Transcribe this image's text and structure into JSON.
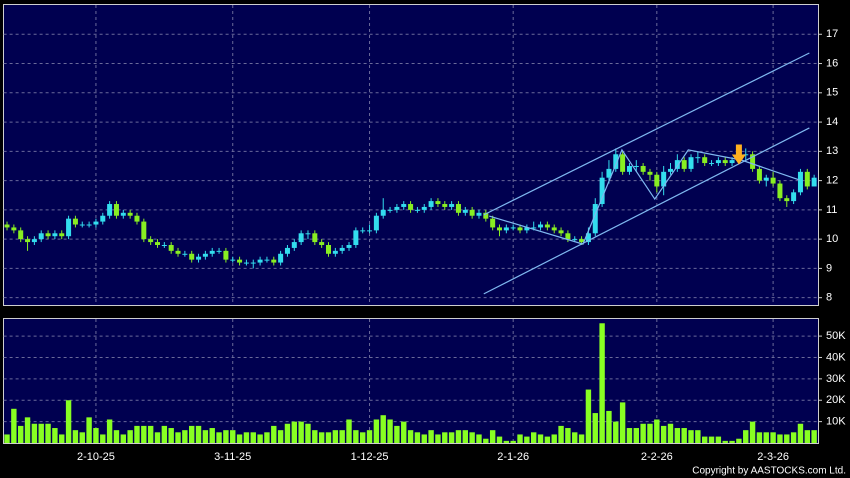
{
  "chart_data": [
    {
      "type": "candlestick",
      "up_color": "#33ddee",
      "down_color": "#88ee22",
      "grid": true,
      "ylim": [
        7.75,
        18.0
      ],
      "yticks": [
        8,
        9,
        10,
        11,
        12,
        13,
        14,
        15,
        16,
        17
      ],
      "open": [
        10.5,
        10.4,
        10.3,
        10.0,
        9.9,
        10.0,
        10.2,
        10.1,
        10.2,
        10.1,
        10.7,
        10.5,
        10.5,
        10.5,
        10.6,
        10.8,
        11.2,
        10.8,
        10.9,
        10.8,
        10.6,
        10.0,
        9.9,
        9.8,
        9.8,
        9.6,
        9.5,
        9.5,
        9.3,
        9.4,
        9.5,
        9.6,
        9.6,
        9.3,
        9.3,
        9.2,
        9.2,
        9.2,
        9.3,
        9.3,
        9.2,
        9.5,
        9.7,
        9.9,
        10.2,
        10.2,
        9.9,
        9.8,
        9.5,
        9.6,
        9.7,
        9.8,
        10.3,
        10.3,
        10.3,
        10.8,
        11.0,
        11.0,
        11.1,
        11.2,
        11.0,
        11.0,
        11.1,
        11.3,
        11.2,
        11.1,
        11.2,
        10.9,
        11.0,
        10.8,
        10.9,
        10.7,
        10.4,
        10.3,
        10.4,
        10.4,
        10.3,
        10.4,
        10.4,
        10.5,
        10.4,
        10.3,
        10.2,
        10.0,
        10.0,
        9.9,
        10.2,
        11.2,
        12.1,
        12.4,
        12.9,
        12.3,
        12.5,
        12.5,
        12.3,
        12.2,
        11.8,
        12.3,
        12.4,
        12.7,
        12.4,
        12.8,
        12.8,
        12.6,
        12.6,
        12.7,
        12.6,
        12.7,
        12.9,
        12.9,
        12.4,
        12.0,
        12.1,
        11.9,
        11.4,
        11.3,
        11.6,
        12.3,
        11.8
      ],
      "high": [
        10.6,
        10.5,
        10.4,
        10.1,
        10.1,
        10.3,
        10.3,
        10.3,
        10.3,
        10.8,
        10.8,
        10.6,
        10.6,
        10.7,
        10.9,
        11.3,
        11.3,
        11.0,
        11.0,
        10.9,
        10.7,
        10.1,
        10.0,
        9.9,
        9.9,
        9.7,
        9.6,
        9.6,
        9.5,
        9.6,
        9.7,
        9.7,
        9.7,
        9.4,
        9.4,
        9.3,
        9.3,
        9.4,
        9.4,
        9.4,
        9.6,
        9.8,
        10.0,
        10.3,
        10.3,
        10.3,
        10.0,
        9.9,
        9.7,
        9.8,
        9.9,
        10.4,
        10.4,
        10.5,
        10.9,
        11.4,
        11.1,
        11.2,
        11.3,
        11.3,
        11.1,
        11.2,
        11.4,
        11.4,
        11.3,
        11.3,
        11.3,
        11.1,
        11.1,
        11.0,
        11.0,
        10.8,
        10.5,
        10.5,
        10.5,
        10.5,
        10.5,
        10.6,
        10.6,
        10.6,
        10.5,
        10.4,
        10.3,
        10.1,
        10.1,
        10.4,
        11.4,
        12.3,
        12.7,
        13.1,
        13.0,
        12.6,
        12.7,
        12.6,
        12.4,
        12.3,
        12.5,
        12.6,
        12.9,
        12.8,
        12.9,
        13.0,
        12.9,
        12.7,
        12.8,
        12.8,
        12.8,
        13.0,
        13.1,
        13.0,
        12.5,
        12.2,
        12.3,
        12.0,
        11.5,
        11.7,
        12.4,
        12.4,
        12.2
      ],
      "low": [
        10.3,
        10.2,
        9.9,
        9.6,
        9.8,
        9.9,
        10.0,
        10.0,
        10.0,
        10.0,
        10.4,
        10.4,
        10.4,
        10.4,
        10.5,
        10.7,
        10.7,
        10.7,
        10.7,
        10.5,
        9.9,
        9.8,
        9.7,
        9.7,
        9.5,
        9.4,
        9.4,
        9.2,
        9.2,
        9.3,
        9.4,
        9.5,
        9.2,
        9.2,
        9.1,
        9.1,
        9.0,
        9.1,
        9.2,
        9.1,
        9.1,
        9.4,
        9.6,
        9.8,
        10.0,
        9.8,
        9.7,
        9.4,
        9.4,
        9.5,
        9.6,
        9.7,
        10.2,
        10.2,
        10.2,
        10.7,
        10.9,
        10.9,
        11.0,
        10.9,
        10.9,
        10.9,
        11.0,
        11.1,
        11.0,
        11.0,
        10.8,
        10.8,
        10.7,
        10.7,
        10.6,
        10.3,
        10.1,
        10.2,
        10.3,
        10.2,
        10.2,
        10.3,
        10.3,
        10.3,
        10.2,
        10.1,
        9.9,
        9.9,
        9.8,
        9.8,
        10.1,
        11.1,
        11.9,
        12.3,
        12.2,
        12.2,
        12.3,
        12.2,
        12.0,
        11.6,
        11.5,
        12.2,
        12.3,
        12.3,
        12.3,
        12.6,
        12.5,
        12.5,
        12.5,
        12.5,
        12.5,
        12.6,
        12.7,
        12.3,
        11.9,
        11.8,
        11.8,
        11.3,
        11.1,
        11.2,
        11.5,
        11.7,
        11.8
      ],
      "close": [
        10.4,
        10.3,
        10.0,
        9.9,
        10.0,
        10.2,
        10.1,
        10.2,
        10.1,
        10.7,
        10.5,
        10.5,
        10.5,
        10.6,
        10.8,
        11.2,
        10.8,
        10.9,
        10.8,
        10.6,
        10.0,
        9.9,
        9.8,
        9.8,
        9.6,
        9.5,
        9.5,
        9.3,
        9.4,
        9.5,
        9.6,
        9.6,
        9.3,
        9.3,
        9.2,
        9.2,
        9.2,
        9.3,
        9.3,
        9.2,
        9.5,
        9.7,
        9.9,
        10.2,
        10.2,
        9.9,
        9.8,
        9.5,
        9.6,
        9.7,
        9.8,
        10.3,
        10.3,
        10.3,
        10.8,
        11.0,
        11.0,
        11.1,
        11.2,
        11.0,
        11.0,
        11.1,
        11.3,
        11.2,
        11.1,
        11.2,
        10.9,
        11.0,
        10.8,
        10.9,
        10.7,
        10.4,
        10.3,
        10.4,
        10.4,
        10.3,
        10.4,
        10.4,
        10.5,
        10.4,
        10.3,
        10.2,
        10.0,
        10.0,
        9.9,
        10.2,
        11.2,
        12.1,
        12.4,
        12.9,
        12.3,
        12.5,
        12.5,
        12.3,
        12.2,
        11.8,
        12.3,
        12.4,
        12.7,
        12.4,
        12.8,
        12.8,
        12.6,
        12.6,
        12.7,
        12.6,
        12.7,
        12.9,
        12.9,
        12.4,
        12.0,
        12.1,
        11.9,
        11.4,
        11.3,
        11.6,
        12.3,
        11.8,
        12.1
      ],
      "lines": [
        {
          "color": "#7fb8f0",
          "x": [
            69.7,
            117.3
          ],
          "y": [
            10.83,
            16.36
          ]
        },
        {
          "color": "#7fb8f0",
          "x": [
            69.7,
            117.3
          ],
          "y": [
            8.13,
            13.8
          ]
        },
        {
          "color": "#7fb8f0",
          "x": [
            70.5,
            84.2,
            89.9,
            94.7,
            99.6,
            107.4,
            115.9
          ],
          "y": [
            10.79,
            9.83,
            13.05,
            11.37,
            13.05,
            12.7,
            12.02
          ]
        }
      ],
      "annotations": [
        {
          "color": "#ffb020",
          "x": 107,
          "y": 12.55
        }
      ]
    },
    {
      "type": "bar",
      "color": "#88ff22",
      "grid": true,
      "ylim": [
        0,
        58000
      ],
      "yticks": [
        {
          "value": 10000,
          "label": "10K"
        },
        {
          "value": 20000,
          "label": "20K"
        },
        {
          "value": 30000,
          "label": "30K"
        },
        {
          "value": 40000,
          "label": "40K"
        },
        {
          "value": 50000,
          "label": "50K"
        }
      ],
      "categories": [
        null,
        null,
        null,
        null,
        null,
        null,
        null,
        null,
        null,
        null,
        null,
        null,
        null,
        "2-10-25",
        null,
        null,
        null,
        null,
        null,
        null,
        null,
        null,
        null,
        null,
        null,
        null,
        null,
        null,
        null,
        null,
        null,
        null,
        null,
        "3-11-25",
        null,
        null,
        null,
        null,
        null,
        null,
        null,
        null,
        null,
        null,
        null,
        null,
        null,
        null,
        null,
        null,
        null,
        null,
        null,
        "1-12-25",
        null,
        null,
        null,
        null,
        null,
        null,
        null,
        null,
        null,
        null,
        null,
        null,
        null,
        null,
        null,
        null,
        null,
        null,
        null,
        null,
        "2-1-26",
        null,
        null,
        null,
        null,
        null,
        null,
        null,
        null,
        null,
        null,
        null,
        null,
        null,
        null,
        null,
        null,
        null,
        null,
        null,
        null,
        "2-2-26",
        null,
        null,
        null,
        null,
        null,
        null,
        null,
        null,
        null,
        null,
        null,
        null,
        null,
        null,
        null,
        null,
        "2-3-26",
        null,
        null,
        null,
        null,
        null,
        null
      ],
      "values": [
        4000,
        16000,
        8000,
        12000,
        9000,
        9000,
        9000,
        7000,
        4000,
        20000,
        6000,
        5000,
        12000,
        7000,
        4000,
        11000,
        6000,
        4000,
        6000,
        8000,
        8000,
        8000,
        5000,
        8000,
        7000,
        5000,
        6000,
        8000,
        8000,
        6000,
        7000,
        5000,
        6000,
        6000,
        4000,
        5000,
        5000,
        4000,
        5000,
        8000,
        6000,
        9000,
        10000,
        10000,
        9000,
        6000,
        5000,
        5000,
        6000,
        6000,
        11000,
        6000,
        5000,
        6000,
        11000,
        13000,
        11000,
        8000,
        10000,
        6000,
        5000,
        4000,
        6000,
        4000,
        5000,
        5000,
        6000,
        6000,
        5000,
        4000,
        2000,
        6000,
        3000,
        1000,
        1000,
        4000,
        3000,
        5000,
        4000,
        3000,
        4000,
        8000,
        7000,
        5000,
        4000,
        25000,
        14000,
        56000,
        15000,
        10000,
        19000,
        7000,
        7000,
        9000,
        9000,
        11000,
        8000,
        9000,
        7000,
        7000,
        6000,
        6000,
        3000,
        3000,
        3000,
        1000,
        1000,
        2000,
        6000,
        10000,
        5000,
        5000,
        5000,
        4000,
        4000,
        5000,
        9000,
        6000,
        6000
      ]
    }
  ],
  "credit": "Copyright by AASTOCKS.com Ltd."
}
